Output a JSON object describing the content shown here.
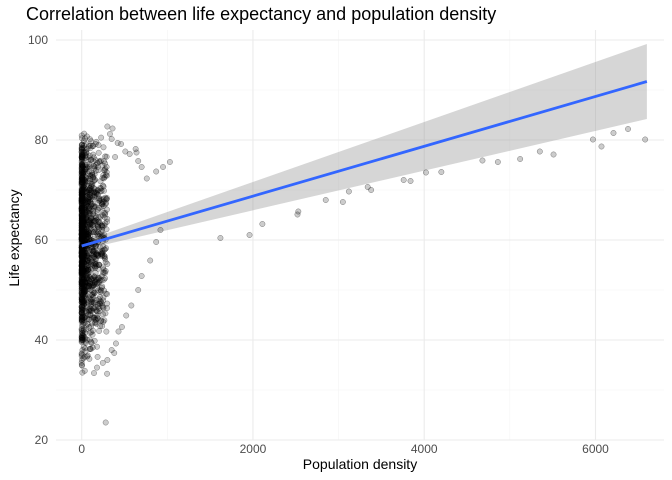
{
  "chart_data": {
    "type": "scatter",
    "title": "Correlation between life expectancy and population density",
    "xlabel": "Population density",
    "ylabel": "Life expectancy",
    "xlim": [
      -300,
      6800
    ],
    "ylim": [
      20,
      102
    ],
    "x_ticks": [
      0,
      2000,
      4000,
      6000
    ],
    "y_ticks": [
      20,
      40,
      60,
      80,
      100
    ],
    "x_tick_labels": [
      "0",
      "2000",
      "4000",
      "6000"
    ],
    "y_tick_labels": [
      "20",
      "40",
      "60",
      "80",
      "100"
    ],
    "grid": true,
    "point_color": "#000000",
    "point_alpha": 0.2,
    "fit_color": "#3366FF",
    "band_color": "#999999",
    "fit_line": {
      "method": "lm",
      "x": [
        0,
        6600
      ],
      "y": [
        58.8,
        91.7
      ]
    },
    "confidence_band": {
      "x": [
        0,
        6600
      ],
      "lower": [
        58.0,
        84.2
      ],
      "upper": [
        59.6,
        99.2
      ]
    },
    "cluster_points": {
      "x_max": 300,
      "y_min": 29,
      "y_max": 82
    },
    "points": [
      [
        1030,
        75.6
      ],
      [
        950,
        74.6
      ],
      [
        870,
        73.7
      ],
      [
        760,
        72.3
      ],
      [
        700,
        74.6
      ],
      [
        660,
        75.8
      ],
      [
        640,
        77.5
      ],
      [
        630,
        78.2
      ],
      [
        560,
        77.2
      ],
      [
        510,
        77.7
      ],
      [
        460,
        79.2
      ],
      [
        420,
        79.4
      ],
      [
        390,
        76.6
      ],
      [
        350,
        80.2
      ],
      [
        330,
        81.2
      ],
      [
        360,
        82.3
      ],
      [
        300,
        82.7
      ],
      [
        920,
        62.0
      ],
      [
        870,
        59.6
      ],
      [
        800,
        55.9
      ],
      [
        700,
        52.8
      ],
      [
        660,
        50.0
      ],
      [
        580,
        46.9
      ],
      [
        520,
        44.9
      ],
      [
        470,
        42.6
      ],
      [
        430,
        41.7
      ],
      [
        400,
        39.3
      ],
      [
        350,
        38.0
      ],
      [
        380,
        37.4
      ],
      [
        300,
        36.0
      ],
      [
        280,
        23.5
      ],
      [
        1620,
        60.4
      ],
      [
        1960,
        61.0
      ],
      [
        2110,
        63.2
      ],
      [
        2520,
        65.1
      ],
      [
        2530,
        65.7
      ],
      [
        2850,
        68.0
      ],
      [
        3050,
        67.6
      ],
      [
        3120,
        69.7
      ],
      [
        3340,
        70.6
      ],
      [
        3380,
        70.0
      ],
      [
        3760,
        72.0
      ],
      [
        3840,
        71.8
      ],
      [
        4020,
        73.5
      ],
      [
        4200,
        73.6
      ],
      [
        4680,
        75.9
      ],
      [
        4860,
        75.6
      ],
      [
        5120,
        76.2
      ],
      [
        5350,
        77.7
      ],
      [
        5510,
        77.1
      ],
      [
        5970,
        80.1
      ],
      [
        6070,
        78.7
      ],
      [
        6210,
        81.4
      ],
      [
        6380,
        82.2
      ],
      [
        6580,
        80.1
      ]
    ]
  }
}
